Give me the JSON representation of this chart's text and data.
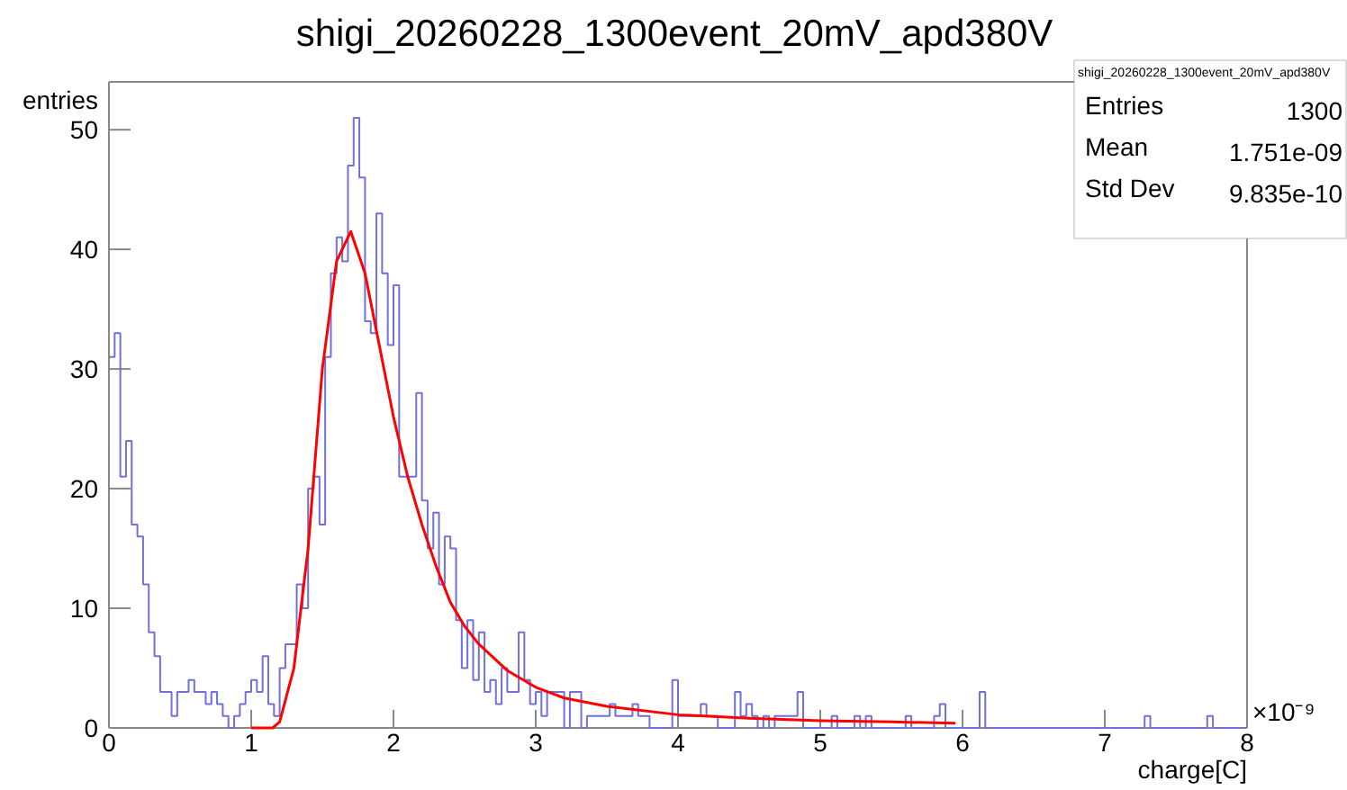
{
  "chart_data": {
    "type": "histogram",
    "title": "shigi_20260228_1300event_20mV_apd380V",
    "xlabel": "charge[C]",
    "ylabel": "entries",
    "bins": [
      0,
      0.04,
      0.08,
      0.12,
      0.16,
      0.2,
      0.24,
      0.28,
      0.32,
      0.36,
      0.4,
      0.44,
      0.48,
      0.52,
      0.56,
      0.6,
      0.64,
      0.68,
      0.72,
      0.76,
      0.8,
      0.84,
      0.88,
      0.92,
      0.96,
      1,
      1.04,
      1.08,
      1.12,
      1.16,
      1.2,
      1.24,
      1.28,
      1.32,
      1.36,
      1.4,
      1.44,
      1.48,
      1.52,
      1.56,
      1.6,
      1.64,
      1.68,
      1.72,
      1.76,
      1.8,
      1.84,
      1.88,
      1.92,
      1.96,
      2,
      2.04,
      2.08,
      2.12,
      2.16,
      2.2,
      2.24,
      2.28,
      2.32,
      2.36,
      2.4,
      2.44,
      2.48,
      2.52,
      2.56,
      2.6,
      2.64,
      2.68,
      2.72,
      2.76,
      2.8,
      2.84,
      2.88,
      2.92,
      2.96,
      3,
      3.04,
      3.08,
      3.12,
      3.16,
      3.2,
      3.24,
      3.28,
      3.32,
      3.36,
      3.4,
      3.44,
      3.48,
      3.52,
      3.56,
      3.6,
      3.64,
      3.68,
      3.72,
      3.76,
      3.8,
      3.84,
      3.88,
      3.92,
      3.96,
      4,
      4.04,
      4.08,
      4.12,
      4.16,
      4.2,
      4.24,
      4.28,
      4.32,
      4.36,
      4.4,
      4.44,
      4.48,
      4.52,
      4.56,
      4.6,
      4.64,
      4.68,
      4.72,
      4.76,
      4.8,
      4.84,
      4.88,
      4.92,
      4.96,
      5,
      5.04,
      5.08,
      5.12,
      5.16,
      5.2,
      5.24,
      5.28,
      5.32,
      5.36,
      5.4,
      5.44,
      5.48,
      5.52,
      5.56,
      5.6,
      5.64,
      5.68,
      5.72,
      5.76,
      5.8,
      5.84,
      5.88,
      5.92,
      5.96,
      6,
      6.04,
      6.08,
      6.12,
      6.16,
      6.2,
      6.24,
      6.28,
      6.32,
      6.36,
      6.4,
      6.44,
      6.48,
      6.52,
      6.56,
      6.6,
      6.64,
      6.68,
      6.72,
      6.76,
      6.8,
      6.84,
      6.88,
      6.92,
      6.96,
      7,
      7.04,
      7.08,
      7.12,
      7.16,
      7.2,
      7.24,
      7.28,
      7.32,
      7.36,
      7.4,
      7.44,
      7.48,
      7.52,
      7.56,
      7.6,
      7.64,
      7.68,
      7.72,
      7.76,
      7.8,
      7.84,
      7.88,
      7.92,
      7.96,
      8
    ],
    "series": [
      {
        "type": "histogram",
        "color": "#7070dd",
        "values": [
          31,
          33,
          21,
          24,
          17,
          16,
          12,
          8,
          6,
          3,
          3,
          1,
          3,
          3,
          4,
          3,
          3,
          2,
          3,
          2,
          1,
          0,
          1,
          2,
          3,
          4,
          3,
          6,
          2,
          1,
          5,
          7,
          7,
          12,
          10,
          20,
          21,
          17,
          31,
          38,
          41,
          39,
          47,
          51,
          46,
          34,
          33,
          43,
          38,
          32,
          37,
          21,
          21,
          21,
          28,
          19,
          15,
          18,
          12,
          16,
          15,
          9,
          5,
          9,
          4,
          8,
          3,
          4,
          2,
          5,
          3,
          3,
          8,
          4,
          2,
          3,
          1,
          3,
          3,
          3,
          0,
          3,
          3,
          0,
          1,
          1,
          1,
          1,
          2,
          1,
          1,
          1,
          2,
          1,
          1,
          0,
          0,
          0,
          0,
          4,
          1,
          1,
          1,
          1,
          2,
          1,
          1,
          0,
          0,
          0,
          3,
          1,
          2,
          1,
          0,
          1,
          0,
          1,
          1,
          1,
          1,
          3,
          0,
          0,
          0,
          0,
          0,
          1,
          0,
          0,
          0,
          1,
          0,
          1,
          0,
          0,
          0,
          0,
          0,
          0,
          1,
          0,
          0,
          0,
          0,
          1,
          2,
          0,
          0,
          0,
          0,
          0,
          0,
          3,
          0,
          0,
          0,
          0,
          0,
          0,
          0,
          0,
          0,
          0,
          0,
          0,
          0,
          0,
          0,
          0,
          0,
          0,
          0,
          0,
          0,
          0,
          0,
          0,
          0,
          0,
          0,
          0,
          1,
          0,
          0,
          0,
          0,
          0,
          0,
          0,
          0,
          0,
          0,
          1,
          0,
          0,
          0,
          0,
          0,
          0
        ]
      },
      {
        "type": "line",
        "color": "#ff0000",
        "x": [
          1.0,
          1.15,
          1.2,
          1.3,
          1.4,
          1.5,
          1.6,
          1.7,
          1.8,
          1.9,
          2.0,
          2.1,
          2.2,
          2.3,
          2.4,
          2.5,
          2.6,
          2.8,
          3.0,
          3.2,
          3.5,
          4.0,
          4.5,
          5.0,
          5.5,
          5.95
        ],
        "values": [
          0,
          0,
          0.5,
          5,
          15,
          30,
          39,
          41.5,
          38,
          32,
          26,
          21,
          17,
          13.5,
          10.5,
          8.5,
          7,
          4.8,
          3.4,
          2.5,
          1.8,
          1.1,
          0.8,
          0.6,
          0.5,
          0.4
        ]
      }
    ],
    "xlim": [
      0,
      8
    ],
    "xticks": [
      0,
      1,
      2,
      3,
      4,
      5,
      6,
      7,
      8
    ],
    "ylim": [
      0,
      54
    ],
    "yticks": [
      0,
      10,
      20,
      30,
      40,
      50
    ],
    "grid": false,
    "annotations": [
      "×10⁻⁹",
      "shigi_20260228_1300event_20mV_apd380V",
      "Entries",
      "1300",
      "Mean",
      "1.751e-09",
      "Std Dev",
      "9.835e-10"
    ]
  }
}
